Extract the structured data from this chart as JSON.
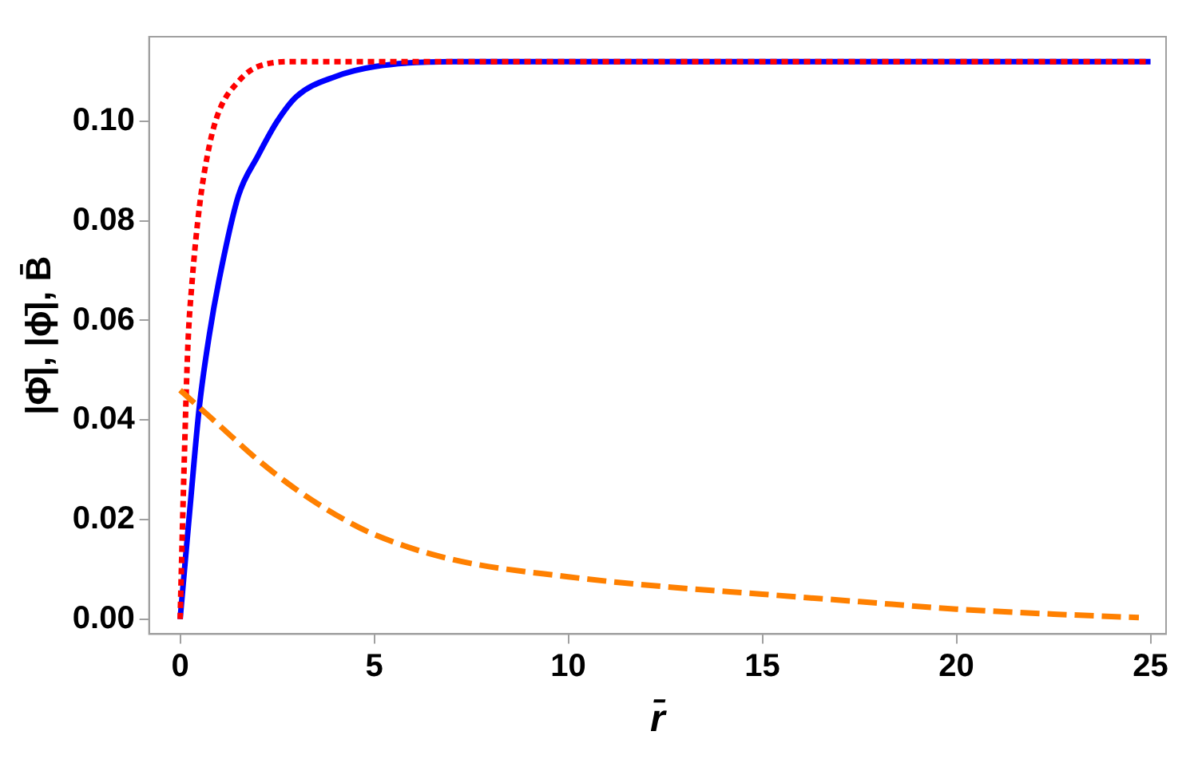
{
  "chart_data": {
    "type": "line",
    "xlabel": "r̄",
    "ylabel": "|Φ̄|, |ϕ̄|, B̄",
    "xlim": [
      -0.8,
      25.4
    ],
    "ylim": [
      -0.003,
      0.117
    ],
    "xticks": [
      0,
      5,
      10,
      15,
      20,
      25
    ],
    "yticks": [
      {
        "value": 0,
        "label": "0.00"
      },
      {
        "value": 0.02,
        "label": "0.02"
      },
      {
        "value": 0.04,
        "label": "0.04"
      },
      {
        "value": 0.06,
        "label": "0.06"
      },
      {
        "value": 0.08,
        "label": "0.08"
      },
      {
        "value": 0.1,
        "label": "0.10"
      }
    ],
    "grid": false,
    "legend": false,
    "marker": "none",
    "series": [
      {
        "color": "#0000ff",
        "line_style": "solid",
        "x": [
          0,
          0.25,
          0.5,
          0.75,
          1,
          1.5,
          2,
          2.5,
          3,
          4,
          5,
          7,
          10,
          25
        ],
        "values": [
          0,
          0.022,
          0.043,
          0.057,
          0.068,
          0.085,
          0.093,
          0.1,
          0.105,
          0.109,
          0.111,
          0.112,
          0.112,
          0.112
        ]
      },
      {
        "color": "#ff0000",
        "line_style": "dotted",
        "x": [
          0,
          0.1,
          0.2,
          0.3,
          0.5,
          0.75,
          1,
          1.5,
          2,
          3,
          25
        ],
        "values": [
          0,
          0.03,
          0.055,
          0.067,
          0.083,
          0.095,
          0.102,
          0.108,
          0.111,
          0.112,
          0.112
        ]
      },
      {
        "color": "#ff8000",
        "line_style": "dashed",
        "x": [
          0,
          1,
          2,
          3,
          4,
          5,
          7,
          10,
          12.5,
          15,
          17.5,
          20,
          22.5,
          24.7
        ],
        "values": [
          0.046,
          0.039,
          0.032,
          0.026,
          0.021,
          0.017,
          0.012,
          0.0085,
          0.0065,
          0.005,
          0.0035,
          0.002,
          0.001,
          0.0003
        ]
      }
    ]
  }
}
